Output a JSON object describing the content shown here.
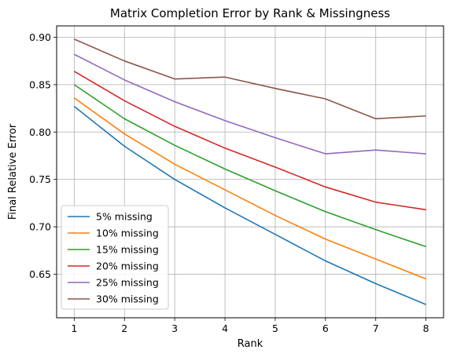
{
  "chart_data": {
    "type": "line",
    "title": "Matrix Completion Error by Rank & Missingness",
    "xlabel": "Rank",
    "ylabel": "Final Relative Error",
    "x": [
      1,
      2,
      3,
      4,
      5,
      6,
      7,
      8
    ],
    "xlim": [
      0.65,
      8.35
    ],
    "ylim": [
      0.604,
      0.912
    ],
    "xticks": [
      "1",
      "2",
      "3",
      "4",
      "5",
      "6",
      "7",
      "8"
    ],
    "yticks": [
      "0.65",
      "0.70",
      "0.75",
      "0.80",
      "0.85",
      "0.90"
    ],
    "grid": true,
    "legend_position": "lower-left",
    "series": [
      {
        "name": "5% missing",
        "color": "#1f77b4",
        "values": [
          0.827,
          0.785,
          0.75,
          0.72,
          0.692,
          0.664,
          0.64,
          0.618
        ]
      },
      {
        "name": "10% missing",
        "color": "#ff7f0e",
        "values": [
          0.836,
          0.798,
          0.766,
          0.739,
          0.712,
          0.687,
          0.666,
          0.645
        ]
      },
      {
        "name": "15% missing",
        "color": "#2ca02c",
        "values": [
          0.85,
          0.814,
          0.786,
          0.761,
          0.738,
          0.716,
          0.697,
          0.679
        ]
      },
      {
        "name": "20% missing",
        "color": "#d62728",
        "values": [
          0.864,
          0.833,
          0.806,
          0.783,
          0.763,
          0.742,
          0.726,
          0.718
        ]
      },
      {
        "name": "25% missing",
        "color": "#9467bd",
        "values": [
          0.882,
          0.855,
          0.832,
          0.812,
          0.794,
          0.777,
          0.781,
          0.777
        ]
      },
      {
        "name": "30% missing",
        "color": "#8c564b",
        "values": [
          0.898,
          0.875,
          0.856,
          0.858,
          0.846,
          0.835,
          0.814,
          0.817
        ]
      }
    ]
  }
}
